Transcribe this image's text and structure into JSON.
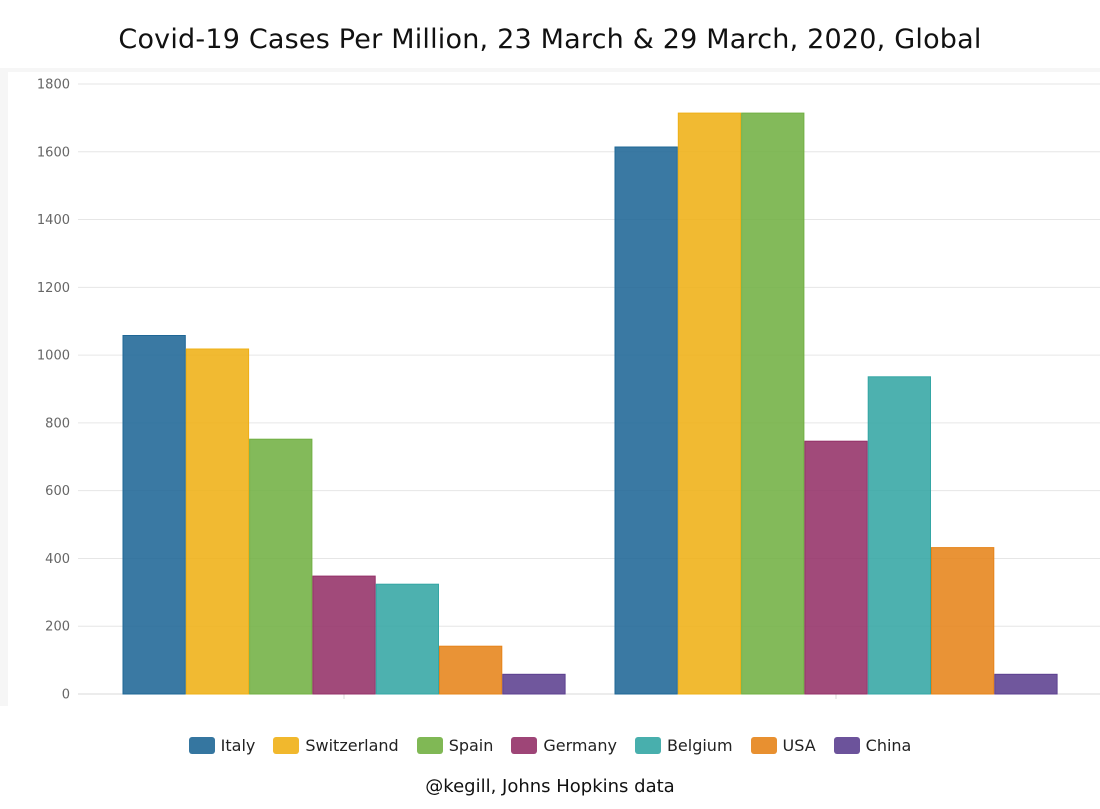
{
  "chart_data": {
    "type": "bar",
    "title": "Covid-19 Cases Per Million, 23 March & 29 March, 2020, Global",
    "credit": "@kegill, Johns Hopkins data",
    "xlabel": "",
    "ylabel": "",
    "ylim": [
      0,
      1800
    ],
    "yticks": [
      0,
      200,
      400,
      600,
      800,
      1000,
      1200,
      1400,
      1600,
      1800
    ],
    "grid": true,
    "legend_position": "bottom",
    "groups": 2,
    "series": [
      {
        "name": "Italy",
        "color": "#1f6796",
        "values": [
          1058,
          1614
        ]
      },
      {
        "name": "Switzerland",
        "color": "#efb016",
        "values": [
          1018,
          1714
        ]
      },
      {
        "name": "Spain",
        "color": "#72b043",
        "values": [
          752,
          1714
        ]
      },
      {
        "name": "Germany",
        "color": "#943168",
        "values": [
          348,
          746
        ]
      },
      {
        "name": "Belgium",
        "color": "#34a6a4",
        "values": [
          324,
          936
        ]
      },
      {
        "name": "USA",
        "color": "#e6841a",
        "values": [
          141,
          432
        ]
      },
      {
        "name": "China",
        "color": "#5c4090",
        "values": [
          58,
          58
        ]
      }
    ]
  }
}
